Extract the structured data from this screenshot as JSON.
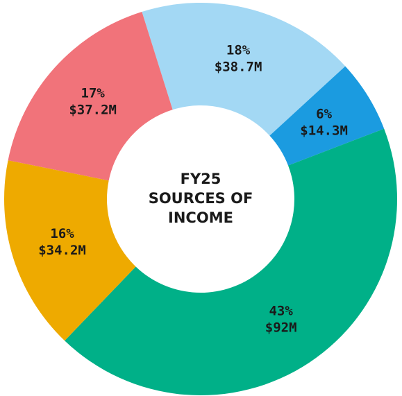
{
  "chart_data": {
    "type": "donut",
    "title": [
      "FY25",
      "SOURCES OF",
      "INCOME"
    ],
    "values": [
      18,
      6,
      43,
      16,
      17
    ],
    "value_labels": [
      "18%",
      "6%",
      "43%",
      "16%",
      "17%"
    ],
    "amounts": [
      38.7,
      14.3,
      92,
      34.2,
      37.2
    ],
    "amount_labels": [
      "$38.7M",
      "$14.3M",
      "$92M",
      "$34.2M",
      "$37.2M"
    ],
    "colors": [
      "#a3d8f4",
      "#1b9be0",
      "#00b088",
      "#eeaa00",
      "#f1737a"
    ]
  }
}
